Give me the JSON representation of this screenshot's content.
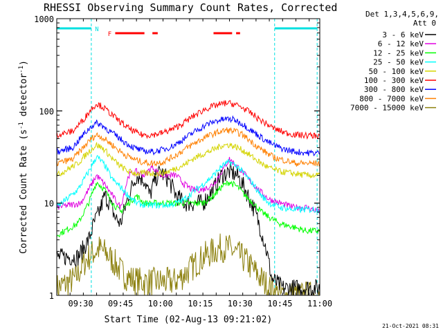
{
  "chart_data": {
    "type": "line",
    "title": "RHESSI Observing Summary Count Rates, Corrected",
    "xlabel": "Start Time (02-Aug-13 09:21:02)",
    "ylabel": "Corrected Count Rate (s",
    "ylabel_sup1": "-1",
    "ylabel_mid": " detector",
    "ylabel_sup2": "-1",
    "ylabel_end": ")",
    "x_unit": "minutes after 09:21:02",
    "xlim": [
      0,
      99
    ],
    "ylim": [
      1,
      1000
    ],
    "yscale": "log",
    "x_ticks": [
      {
        "label": "09:30",
        "x": 9
      },
      {
        "label": "09:45",
        "x": 24
      },
      {
        "label": "10:00",
        "x": 39
      },
      {
        "label": "10:15",
        "x": 54
      },
      {
        "label": "10:30",
        "x": 69
      },
      {
        "label": "10:45",
        "x": 84
      },
      {
        "label": "11:00",
        "x": 99
      }
    ],
    "y_ticks": [
      {
        "label": "1000",
        "y": 1000
      },
      {
        "label": "100",
        "y": 100
      },
      {
        "label": "10",
        "y": 10
      },
      {
        "label": "1",
        "y": 1
      }
    ],
    "legend": {
      "placement": "top-right, outside plot",
      "header1": "Det 1,3,4,5,6,9,",
      "header2": "Att 0",
      "entries": [
        {
          "label": "3 - 6 keV",
          "color": "#000000"
        },
        {
          "label": "6 - 12 keV",
          "color": "#e000e0"
        },
        {
          "label": "12 - 25 keV",
          "color": "#00ff00"
        },
        {
          "label": "25 - 50 keV",
          "color": "#00ffff"
        },
        {
          "label": "50 - 100 keV",
          "color": "#d4d400"
        },
        {
          "label": "100 - 300 keV",
          "color": "#ff0000"
        },
        {
          "label": "300 - 800 keV",
          "color": "#0000ff"
        },
        {
          "label": "800 - 7000 keV",
          "color": "#ff8000"
        },
        {
          "label": "7000 - 15000 keV",
          "color": "#8b7f0b"
        }
      ]
    },
    "night_intervals": [
      [
        0,
        13
      ],
      [
        82,
        99
      ]
    ],
    "flags": [
      {
        "label": "N",
        "color": "#00e0e0",
        "intervals": [
          [
            0,
            13
          ],
          [
            82,
            98
          ]
        ]
      },
      {
        "label": "F",
        "color": "#ff0000",
        "intervals": [
          [
            22,
            33
          ],
          [
            36,
            38
          ],
          [
            59,
            66
          ],
          [
            67.5,
            69
          ]
        ]
      }
    ],
    "series": [
      {
        "name": "3 - 6 keV",
        "color": "#000000",
        "data_start": 0,
        "data_end": 99,
        "points": [
          [
            0,
            2.6
          ],
          [
            8,
            2.6
          ],
          [
            12,
            4
          ],
          [
            14,
            6
          ],
          [
            16,
            8
          ],
          [
            18,
            12
          ],
          [
            20,
            10
          ],
          [
            22,
            7
          ],
          [
            24,
            6
          ],
          [
            27,
            12
          ],
          [
            30,
            20
          ],
          [
            33,
            18
          ],
          [
            35,
            12
          ],
          [
            37,
            18
          ],
          [
            39,
            22
          ],
          [
            42,
            18
          ],
          [
            45,
            12
          ],
          [
            48,
            10
          ],
          [
            51,
            10
          ],
          [
            55,
            10
          ],
          [
            59,
            14
          ],
          [
            62,
            20
          ],
          [
            65,
            22
          ],
          [
            68,
            20
          ],
          [
            71,
            14
          ],
          [
            74,
            9
          ],
          [
            77,
            5
          ],
          [
            79,
            3
          ],
          [
            81,
            1.5
          ],
          [
            85,
            1.2
          ],
          [
            99,
            1.2
          ]
        ]
      },
      {
        "name": "6 - 12 keV",
        "color": "#e000e0",
        "data_start": 0,
        "data_end": 99,
        "points": [
          [
            0,
            9
          ],
          [
            9,
            10
          ],
          [
            12,
            14
          ],
          [
            15,
            20
          ],
          [
            18,
            16
          ],
          [
            21,
            12
          ],
          [
            24,
            9
          ],
          [
            27,
            20
          ],
          [
            30,
            22
          ],
          [
            33,
            20
          ],
          [
            36,
            25
          ],
          [
            39,
            20
          ],
          [
            42,
            20
          ],
          [
            45,
            20
          ],
          [
            48,
            16
          ],
          [
            51,
            14
          ],
          [
            55,
            14
          ],
          [
            59,
            16
          ],
          [
            62,
            22
          ],
          [
            65,
            30
          ],
          [
            68,
            25
          ],
          [
            71,
            20
          ],
          [
            74,
            16
          ],
          [
            77,
            13
          ],
          [
            80,
            11
          ],
          [
            84,
            10
          ],
          [
            89,
            9
          ],
          [
            94,
            9
          ],
          [
            99,
            8
          ]
        ]
      },
      {
        "name": "12 - 25 keV",
        "color": "#00ff00",
        "data_start": 0,
        "data_end": 99,
        "points": [
          [
            0,
            4.5
          ],
          [
            8,
            6
          ],
          [
            12,
            10
          ],
          [
            15,
            17
          ],
          [
            18,
            14
          ],
          [
            21,
            10
          ],
          [
            24,
            8
          ],
          [
            27,
            10
          ],
          [
            30,
            12
          ],
          [
            33,
            10
          ],
          [
            36,
            10
          ],
          [
            39,
            10
          ],
          [
            42,
            10
          ],
          [
            45,
            10
          ],
          [
            48,
            10
          ],
          [
            51,
            10
          ],
          [
            55,
            10
          ],
          [
            59,
            12
          ],
          [
            62,
            15
          ],
          [
            65,
            17
          ],
          [
            68,
            15
          ],
          [
            71,
            12
          ],
          [
            74,
            10
          ],
          [
            77,
            8
          ],
          [
            80,
            7
          ],
          [
            84,
            6
          ],
          [
            89,
            5.5
          ],
          [
            94,
            5
          ],
          [
            99,
            5
          ]
        ]
      },
      {
        "name": "25 - 50 keV",
        "color": "#00ffff",
        "data_start": 0,
        "data_end": 99,
        "points": [
          [
            0,
            9
          ],
          [
            8,
            14
          ],
          [
            12,
            22
          ],
          [
            15,
            32
          ],
          [
            18,
            26
          ],
          [
            21,
            18
          ],
          [
            24,
            15
          ],
          [
            27,
            12
          ],
          [
            30,
            10
          ],
          [
            33,
            9.5
          ],
          [
            36,
            9.5
          ],
          [
            39,
            9.5
          ],
          [
            42,
            9.5
          ],
          [
            45,
            10
          ],
          [
            48,
            11
          ],
          [
            51,
            13
          ],
          [
            55,
            16
          ],
          [
            59,
            20
          ],
          [
            62,
            25
          ],
          [
            65,
            28
          ],
          [
            68,
            25
          ],
          [
            71,
            20
          ],
          [
            74,
            16
          ],
          [
            77,
            12
          ],
          [
            80,
            10
          ],
          [
            84,
            9
          ],
          [
            89,
            8.5
          ],
          [
            94,
            8.5
          ],
          [
            99,
            8.5
          ]
        ]
      },
      {
        "name": "50 - 100 keV",
        "color": "#d4d400",
        "data_start": 0,
        "data_end": 99,
        "points": [
          [
            0,
            20
          ],
          [
            8,
            27
          ],
          [
            12,
            36
          ],
          [
            15,
            43
          ],
          [
            18,
            38
          ],
          [
            21,
            30
          ],
          [
            24,
            25
          ],
          [
            27,
            22
          ],
          [
            30,
            21
          ],
          [
            33,
            21
          ],
          [
            36,
            21
          ],
          [
            39,
            21
          ],
          [
            42,
            22
          ],
          [
            45,
            24
          ],
          [
            48,
            26
          ],
          [
            51,
            30
          ],
          [
            55,
            34
          ],
          [
            59,
            38
          ],
          [
            62,
            42
          ],
          [
            65,
            43
          ],
          [
            68,
            40
          ],
          [
            71,
            36
          ],
          [
            74,
            31
          ],
          [
            77,
            27
          ],
          [
            80,
            24
          ],
          [
            84,
            22
          ],
          [
            89,
            21
          ],
          [
            94,
            20
          ],
          [
            99,
            20
          ]
        ]
      },
      {
        "name": "100 - 300 keV",
        "color": "#ff0000",
        "data_start": 0,
        "data_end": 99,
        "points": [
          [
            0,
            55
          ],
          [
            6,
            60
          ],
          [
            10,
            80
          ],
          [
            13,
            105
          ],
          [
            15,
            120
          ],
          [
            17,
            112
          ],
          [
            20,
            95
          ],
          [
            23,
            80
          ],
          [
            26,
            68
          ],
          [
            29,
            60
          ],
          [
            32,
            55
          ],
          [
            36,
            55
          ],
          [
            40,
            58
          ],
          [
            44,
            64
          ],
          [
            48,
            75
          ],
          [
            52,
            90
          ],
          [
            56,
            105
          ],
          [
            60,
            115
          ],
          [
            64,
            122
          ],
          [
            67,
            118
          ],
          [
            70,
            108
          ],
          [
            73,
            95
          ],
          [
            76,
            82
          ],
          [
            79,
            72
          ],
          [
            82,
            64
          ],
          [
            86,
            58
          ],
          [
            90,
            55
          ],
          [
            95,
            54
          ],
          [
            99,
            54
          ]
        ]
      },
      {
        "name": "300 - 800 keV",
        "color": "#0000ff",
        "data_start": 0,
        "data_end": 99,
        "points": [
          [
            0,
            36
          ],
          [
            6,
            40
          ],
          [
            10,
            55
          ],
          [
            13,
            68
          ],
          [
            15,
            74
          ],
          [
            17,
            70
          ],
          [
            20,
            60
          ],
          [
            23,
            52
          ],
          [
            26,
            45
          ],
          [
            29,
            40
          ],
          [
            32,
            37
          ],
          [
            36,
            36
          ],
          [
            40,
            38
          ],
          [
            44,
            42
          ],
          [
            48,
            50
          ],
          [
            52,
            60
          ],
          [
            56,
            70
          ],
          [
            60,
            78
          ],
          [
            64,
            82
          ],
          [
            67,
            80
          ],
          [
            70,
            72
          ],
          [
            73,
            62
          ],
          [
            76,
            54
          ],
          [
            79,
            47
          ],
          [
            82,
            42
          ],
          [
            86,
            38
          ],
          [
            90,
            36
          ],
          [
            95,
            35
          ],
          [
            99,
            35
          ]
        ]
      },
      {
        "name": "800 - 7000 keV",
        "color": "#ff8000",
        "data_start": 0,
        "data_end": 99,
        "points": [
          [
            0,
            27
          ],
          [
            6,
            30
          ],
          [
            10,
            40
          ],
          [
            13,
            50
          ],
          [
            15,
            55
          ],
          [
            17,
            52
          ],
          [
            20,
            45
          ],
          [
            23,
            38
          ],
          [
            26,
            33
          ],
          [
            29,
            30
          ],
          [
            32,
            28
          ],
          [
            36,
            27
          ],
          [
            40,
            28
          ],
          [
            44,
            32
          ],
          [
            48,
            38
          ],
          [
            52,
            45
          ],
          [
            56,
            52
          ],
          [
            60,
            58
          ],
          [
            64,
            62
          ],
          [
            67,
            60
          ],
          [
            70,
            55
          ],
          [
            73,
            47
          ],
          [
            76,
            40
          ],
          [
            79,
            35
          ],
          [
            82,
            31
          ],
          [
            86,
            29
          ],
          [
            90,
            27
          ],
          [
            95,
            27
          ],
          [
            99,
            27
          ]
        ]
      },
      {
        "name": "7000 - 15000 keV",
        "color": "#8b7f0b",
        "data_start": 0,
        "data_end": 99,
        "points": [
          [
            0,
            1.2
          ],
          [
            7,
            1.5
          ],
          [
            10,
            2.2
          ],
          [
            13,
            2.8
          ],
          [
            16,
            3.2
          ],
          [
            19,
            2.8
          ],
          [
            22,
            2.2
          ],
          [
            25,
            1.7
          ],
          [
            28,
            1.5
          ],
          [
            32,
            1.4
          ],
          [
            36,
            1.4
          ],
          [
            40,
            1.4
          ],
          [
            44,
            1.4
          ],
          [
            47,
            1.6
          ],
          [
            50,
            1.9
          ],
          [
            53,
            2.3
          ],
          [
            56,
            2.7
          ],
          [
            59,
            3.0
          ],
          [
            62,
            3.3
          ],
          [
            65,
            3.2
          ],
          [
            68,
            2.8
          ],
          [
            71,
            2.4
          ],
          [
            74,
            1.9
          ],
          [
            77,
            1.5
          ],
          [
            80,
            1.2
          ],
          [
            84,
            1.0
          ],
          [
            99,
            1.0
          ]
        ]
      }
    ]
  },
  "timestamp": "21-Oct-2021 08:31"
}
